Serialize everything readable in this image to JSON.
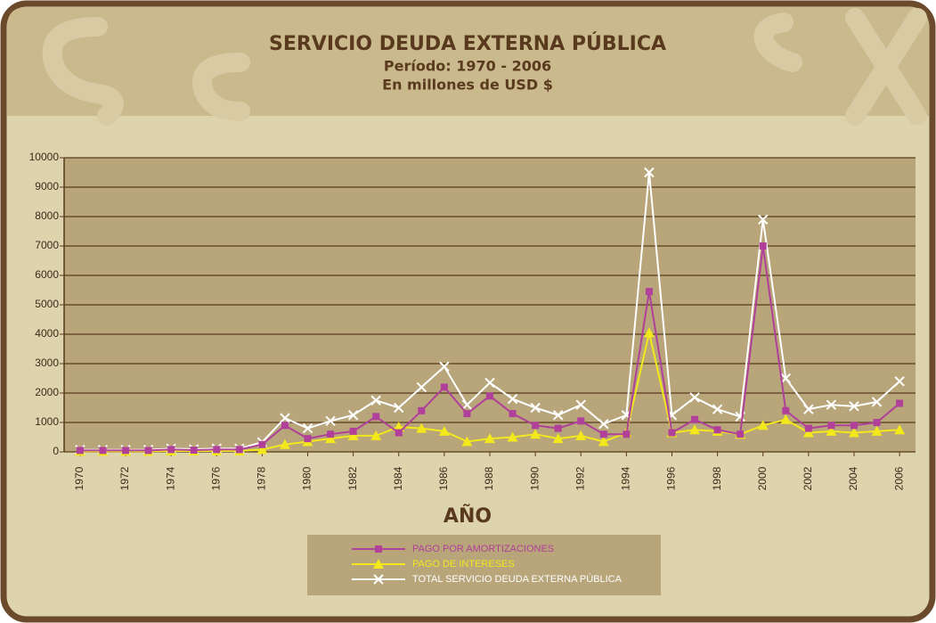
{
  "chart_data": {
    "type": "line",
    "title": "SERVICIO DEUDA EXTERNA PÚBLICA",
    "subtitle": "Período: 1970 - 2006",
    "subtitle2": "En millones de USD $",
    "x_label": "AÑO",
    "x": [
      1970,
      1971,
      1972,
      1973,
      1974,
      1975,
      1976,
      1977,
      1978,
      1979,
      1980,
      1981,
      1982,
      1983,
      1984,
      1985,
      1986,
      1987,
      1988,
      1989,
      1990,
      1991,
      1992,
      1993,
      1994,
      1995,
      1996,
      1997,
      1998,
      1999,
      2000,
      2001,
      2002,
      2003,
      2004,
      2005,
      2006
    ],
    "xlim": [
      1969.3,
      2006.7
    ],
    "xticks": [
      1970,
      1972,
      1974,
      1976,
      1978,
      1980,
      1982,
      1984,
      1986,
      1988,
      1990,
      1992,
      1994,
      1996,
      1998,
      2000,
      2002,
      2004,
      2006
    ],
    "ylim": [
      0,
      10000
    ],
    "yticks": [
      0,
      1000,
      2000,
      3000,
      4000,
      5000,
      6000,
      7000,
      8000,
      9000,
      10000
    ],
    "grid": true,
    "legend": "bottom",
    "series": [
      {
        "name": "PAGO POR AMORTIZACIONES",
        "color": "#b0409a",
        "marker": "square",
        "values": [
          50,
          50,
          50,
          50,
          80,
          60,
          80,
          80,
          250,
          900,
          450,
          600,
          700,
          1200,
          650,
          1400,
          2200,
          1300,
          1900,
          1300,
          900,
          800,
          1050,
          600,
          600,
          5450,
          650,
          1100,
          750,
          600,
          7000,
          1400,
          800,
          900,
          900,
          1000,
          1650
        ]
      },
      {
        "name": "PAGO DE INTERESES",
        "color": "#f2e81c",
        "marker": "triangle",
        "values": [
          20,
          20,
          20,
          20,
          30,
          30,
          30,
          30,
          80,
          250,
          350,
          450,
          550,
          550,
          850,
          800,
          700,
          350,
          450,
          500,
          600,
          450,
          550,
          350,
          650,
          4050,
          650,
          750,
          700,
          600,
          900,
          1100,
          650,
          700,
          650,
          700,
          750
        ]
      },
      {
        "name": "TOTAL SERVICIO DEUDA EXTERNA PÚBLICA",
        "color": "#ffffff",
        "marker": "x",
        "values": [
          70,
          70,
          70,
          70,
          110,
          90,
          110,
          110,
          330,
          1150,
          800,
          1050,
          1250,
          1750,
          1500,
          2200,
          2900,
          1600,
          2350,
          1800,
          1500,
          1250,
          1600,
          950,
          1250,
          9500,
          1250,
          1850,
          1450,
          1200,
          7900,
          2500,
          1450,
          1600,
          1550,
          1700,
          2400
        ]
      }
    ]
  }
}
